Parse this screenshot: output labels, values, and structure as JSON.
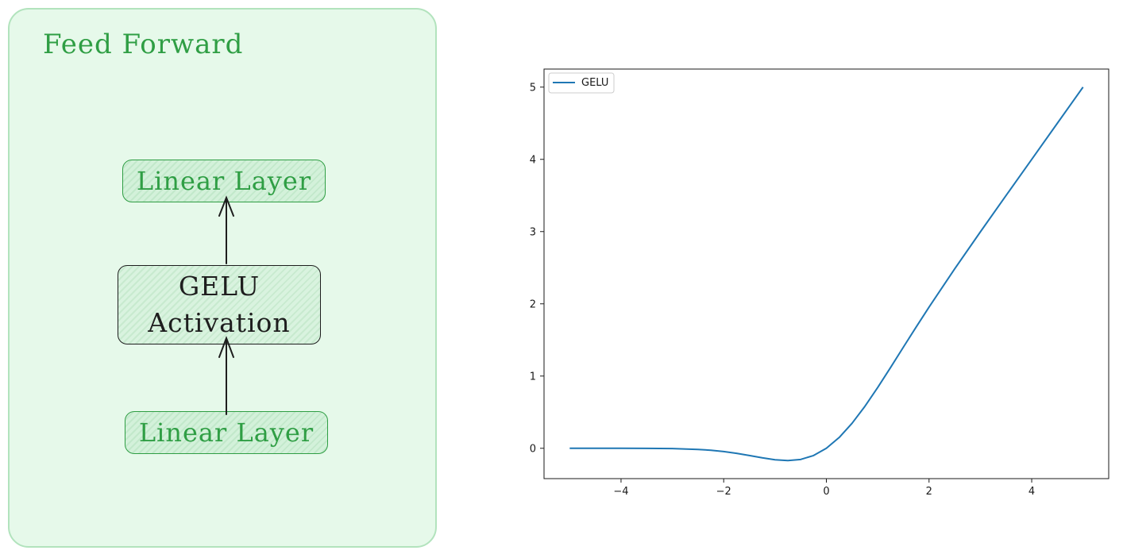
{
  "diagram": {
    "title": "Feed Forward",
    "top_node": "Linear Layer",
    "middle_node_line1": "GELU",
    "middle_node_line2": "Activation",
    "bottom_node": "Linear Layer",
    "colors": {
      "panel_bg": "#e6f9ea",
      "panel_border": "#b2e3bd",
      "green": "#2f9e44",
      "ink": "#1e1e1e"
    }
  },
  "chart_data": {
    "type": "line",
    "title": "",
    "xlabel": "",
    "ylabel": "",
    "xlim": [
      -5.5,
      5.5
    ],
    "ylim": [
      -0.42,
      5.25
    ],
    "xticks": [
      -4,
      -2,
      0,
      2,
      4
    ],
    "yticks": [
      0,
      1,
      2,
      3,
      4,
      5
    ],
    "xtick_labels": [
      "−4",
      "−2",
      "0",
      "2",
      "4"
    ],
    "ytick_labels": [
      "0",
      "1",
      "2",
      "3",
      "4",
      "5"
    ],
    "grid": false,
    "legend": {
      "position": "top-left",
      "entries": [
        "GELU"
      ]
    },
    "series": [
      {
        "name": "GELU",
        "color": "#1f77b4",
        "x": [
          -5.0,
          -4.5,
          -4.0,
          -3.5,
          -3.0,
          -2.5,
          -2.25,
          -2.0,
          -1.75,
          -1.5,
          -1.25,
          -1.0,
          -0.75,
          -0.5,
          -0.25,
          0.0,
          0.25,
          0.5,
          0.75,
          1.0,
          1.25,
          1.5,
          1.75,
          2.0,
          2.5,
          3.0,
          3.5,
          4.0,
          4.5,
          5.0
        ],
        "y": [
          -0.0,
          -0.0,
          -0.0001,
          -0.0008,
          -0.004,
          -0.0155,
          -0.0274,
          -0.0455,
          -0.0702,
          -0.1002,
          -0.132,
          -0.1587,
          -0.17,
          -0.1543,
          -0.1003,
          0.0,
          0.1497,
          0.3457,
          0.58,
          0.8413,
          1.118,
          1.3998,
          1.6798,
          1.9545,
          2.4845,
          2.996,
          3.4992,
          3.9999,
          4.5,
          5.0
        ]
      }
    ]
  }
}
